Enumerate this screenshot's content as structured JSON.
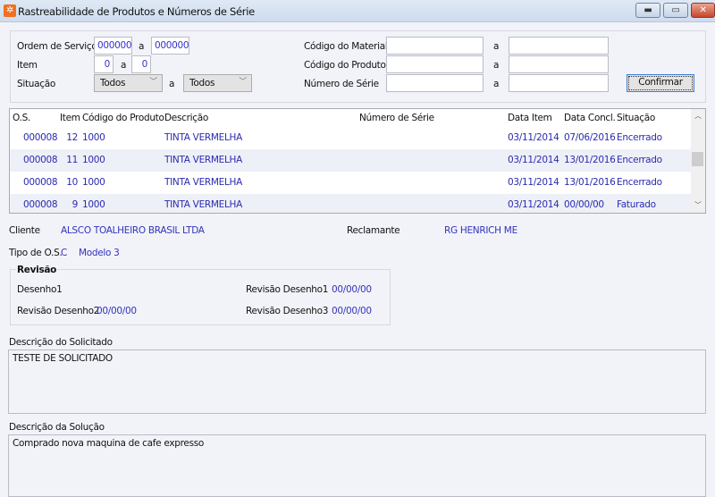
{
  "window": {
    "title": "Rastreabilidade de Produtos e Números de Série",
    "icon": "app-logo-icon",
    "buttons": [
      "minimize",
      "maximize",
      "close"
    ]
  },
  "filters": {
    "ordem_label": "Ordem de Serviço",
    "ordem_from": "000000",
    "ordem_to": "000000",
    "item_label": "Item",
    "item_from": "0",
    "item_to": "0",
    "situacao_label": "Situação",
    "situacao_from": "Todos",
    "situacao_to": "Todos",
    "material_label": "Código do Material",
    "material_from": "",
    "material_to": "",
    "produto_label": "Código do Produto",
    "produto_from": "",
    "produto_to": "",
    "serie_label": "Número de Série",
    "serie_from": "",
    "serie_to": "",
    "range_sep": "a",
    "confirm_label": "Confirmar"
  },
  "grid": {
    "columns": [
      "O.S.",
      "Item",
      "Código do Produto",
      "Descrição",
      "Número de Série",
      "Data Item",
      "Data Concl.",
      "Situação"
    ],
    "rows": [
      [
        "000008",
        "12",
        "1000",
        "TINTA VERMELHA",
        "",
        "03/11/2014",
        "07/06/2016",
        "Encerrado"
      ],
      [
        "000008",
        "11",
        "1000",
        "TINTA VERMELHA",
        "",
        "03/11/2014",
        "13/01/2016",
        "Encerrado"
      ],
      [
        "000008",
        "10",
        "1000",
        "TINTA VERMELHA",
        "",
        "03/11/2014",
        "13/01/2016",
        "Encerrado"
      ],
      [
        "000008",
        "9",
        "1000",
        "TINTA VERMELHA",
        "",
        "03/11/2014",
        "00/00/00",
        "Faturado"
      ]
    ]
  },
  "details": {
    "cliente_label": "Cliente",
    "cliente": "ALSCO TOALHEIRO BRASIL LTDA",
    "reclamante_label": "Reclamante",
    "reclamante": "RG HENRICH ME",
    "tipo_label": "Tipo de O.S.",
    "tipo": "C",
    "modelo": "Modelo 3"
  },
  "revisao": {
    "title": "Revisão",
    "desenho1_label": "Desenho1",
    "desenho1": "",
    "rev1_label": "Revisão Desenho1",
    "rev1": "00/00/00",
    "rev2_label": "Revisão Desenho2",
    "rev2": "00/00/00",
    "rev3_label": "Revisão Desenho3",
    "rev3": "00/00/00"
  },
  "solicitado": {
    "label": "Descrição do Solicitado",
    "value": "TESTE DE SOLICITADO"
  },
  "solucao": {
    "label": "Descrição da Solução",
    "value": "Comprado nova maquina de cafe expresso"
  }
}
